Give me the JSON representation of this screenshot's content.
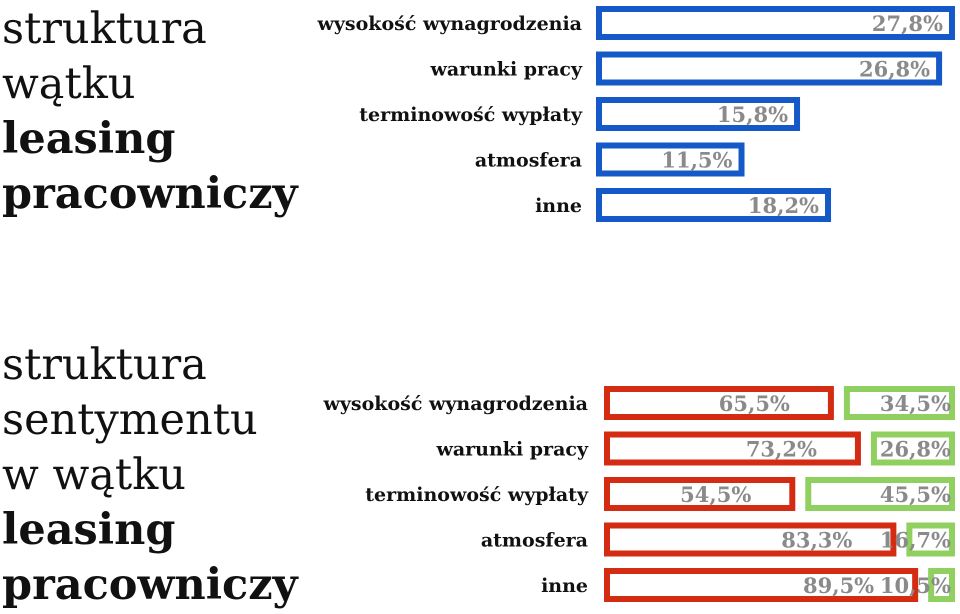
{
  "chart_data": [
    {
      "type": "bar",
      "title_lines": [
        "struktura",
        "wątku",
        "leasing",
        "pracowniczy"
      ],
      "categories": [
        "wysokość wynagrodzenia",
        "warunki pracy",
        "terminowość wypłaty",
        "atmosfera",
        "inne"
      ],
      "values": [
        27.8,
        26.8,
        15.8,
        11.5,
        18.2
      ],
      "value_labels": [
        "27,8%",
        "26,8%",
        "15,8%",
        "11,5%",
        "18,2%"
      ],
      "colors": {
        "bar": "#1558c8"
      }
    },
    {
      "type": "bar",
      "stacked": true,
      "title_lines": [
        "struktura",
        "sentymentu",
        "w wątku",
        "leasing",
        "pracowniczy"
      ],
      "categories": [
        "wysokość wynagrodzenia",
        "warunki pracy",
        "terminowość wypłaty",
        "atmosfera",
        "inne"
      ],
      "series": [
        {
          "values": [
            65.5,
            73.2,
            54.5,
            83.3,
            89.5
          ],
          "labels": [
            "65,5%",
            "73,2%",
            "54,5%",
            "83,3%",
            "89,5%"
          ],
          "color": "#d42b13"
        },
        {
          "values": [
            34.5,
            26.8,
            45.5,
            16.7,
            10.5
          ],
          "labels": [
            "34,5%",
            "26,8%",
            "45,5%",
            "16,7%",
            "10,5%"
          ],
          "color": "#90d060"
        }
      ]
    }
  ]
}
